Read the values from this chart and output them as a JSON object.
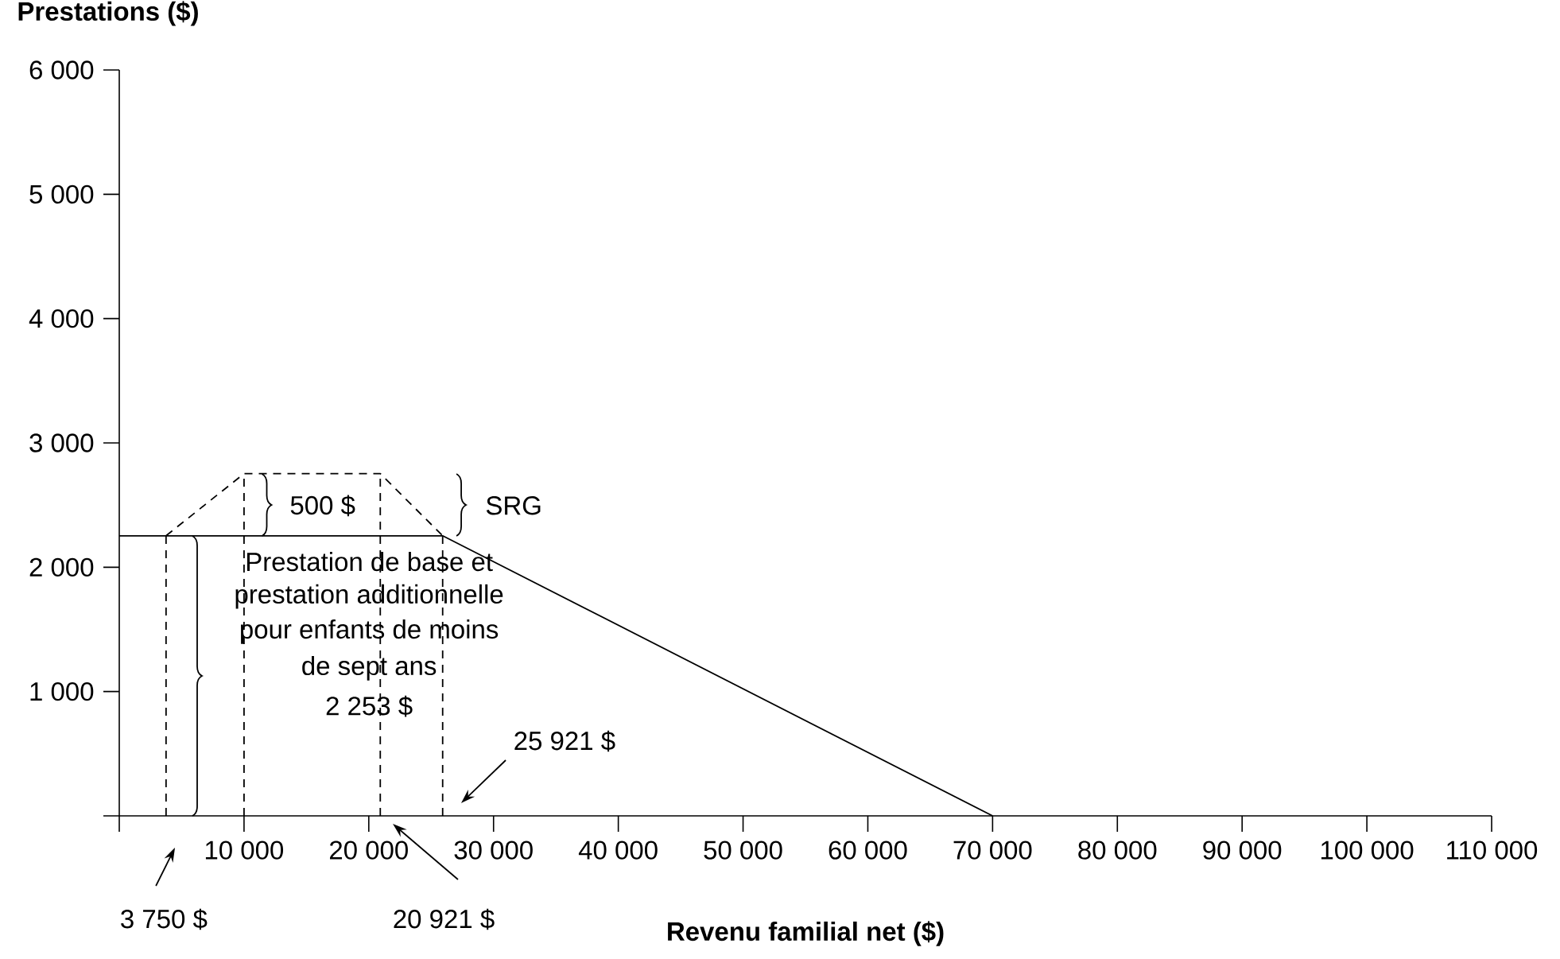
{
  "chart_data": {
    "type": "line",
    "xlabel": "Revenu familial net ($)",
    "ylabel": "Prestations ($)",
    "xlim": [
      0,
      110000
    ],
    "ylim": [
      0,
      6000
    ],
    "xticks": [
      {
        "value": 0,
        "label": null
      },
      {
        "value": 10000,
        "label": "10 000"
      },
      {
        "value": 20000,
        "label": "20 000"
      },
      {
        "value": 30000,
        "label": "30 000"
      },
      {
        "value": 40000,
        "label": "40 000"
      },
      {
        "value": 50000,
        "label": "50 000"
      },
      {
        "value": 60000,
        "label": "60 000"
      },
      {
        "value": 70000,
        "label": "70 000"
      },
      {
        "value": 80000,
        "label": "80 000"
      },
      {
        "value": 90000,
        "label": "90 000"
      },
      {
        "value": 100000,
        "label": "100 000"
      },
      {
        "value": 110000,
        "label": "110 000"
      }
    ],
    "yticks": [
      {
        "value": 0,
        "label": null
      },
      {
        "value": 1000,
        "label": "1 000"
      },
      {
        "value": 2000,
        "label": "2 000"
      },
      {
        "value": 3000,
        "label": "3 000"
      },
      {
        "value": 4000,
        "label": "4 000"
      },
      {
        "value": 5000,
        "label": "5 000"
      },
      {
        "value": 6000,
        "label": "6 000"
      }
    ],
    "grid": false,
    "marker": "none",
    "series": [
      {
        "color": "#000000",
        "line_style": "solid",
        "x": [
          0,
          25921,
          70000
        ],
        "values": [
          2253,
          2253,
          0
        ]
      },
      {
        "color": "#000000",
        "line_style": "dashed",
        "x": [
          3750,
          10000,
          20921,
          25921
        ],
        "values": [
          2253,
          2753,
          2753,
          2253
        ]
      },
      {
        "color": "#000000",
        "line_style": "dashed",
        "x": [
          3750,
          3750
        ],
        "values": [
          0,
          2253
        ]
      },
      {
        "color": "#000000",
        "line_style": "dashed",
        "x": [
          10000,
          10000
        ],
        "values": [
          0,
          2753
        ]
      },
      {
        "color": "#000000",
        "line_style": "dashed",
        "x": [
          20921,
          20921
        ],
        "values": [
          0,
          2753
        ]
      },
      {
        "color": "#000000",
        "line_style": "dashed",
        "x": [
          25921,
          25921
        ],
        "values": [
          0,
          2253
        ]
      }
    ],
    "annotations": [
      "500 $",
      "SRG",
      "Prestation de base et",
      "prestation additionnelle",
      "pour enfants de moins",
      "de sept ans",
      "2 253 $",
      "3 750 $",
      "20 921 $",
      "25 921 $"
    ]
  }
}
